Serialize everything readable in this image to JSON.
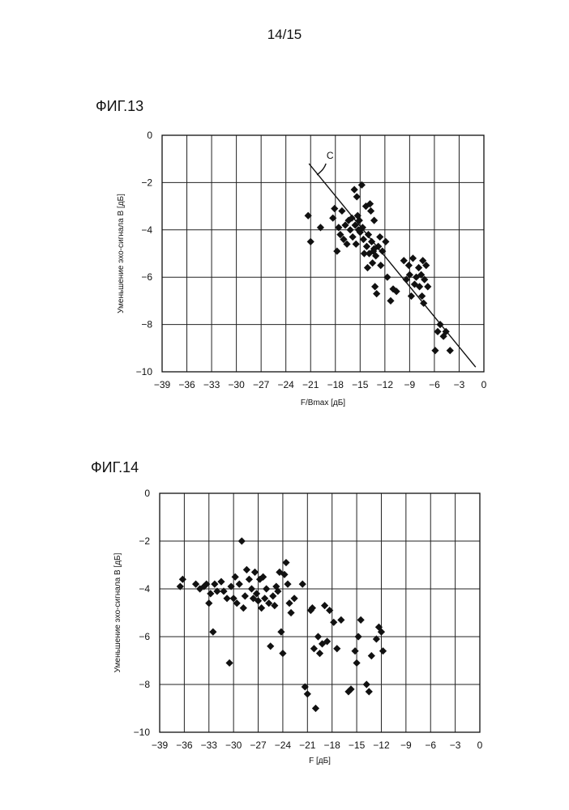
{
  "page_number": "14/15",
  "figures": [
    {
      "id": "fig13",
      "label": "ФИГ.13"
    },
    {
      "id": "fig14",
      "label": "ФИГ.14"
    }
  ],
  "chart_data": [
    {
      "id": "fig13",
      "type": "scatter",
      "title": "",
      "xlabel": "F/Bmax [дБ]",
      "ylabel": "Уменьшение эхо-сигнала B [дБ]",
      "xlim": [
        -39,
        0
      ],
      "ylim": [
        -10,
        0
      ],
      "xticks": [
        -39,
        -36,
        -33,
        -30,
        -27,
        -24,
        -21,
        -18,
        -15,
        -12,
        -9,
        -6,
        -3,
        0
      ],
      "yticks": [
        0,
        -2,
        -4,
        -6,
        -8,
        -10
      ],
      "xtick_labels": [
        "−39",
        "−36",
        "−33",
        "−30",
        "−27",
        "−24",
        "−21",
        "−18",
        "−15",
        "−12",
        "−9",
        "−6",
        "−3",
        "0"
      ],
      "ytick_labels": [
        "0",
        "−2",
        "−4",
        "−6",
        "−8",
        "−10"
      ],
      "grid": true,
      "marker": "diamond",
      "trendline": {
        "label": "C",
        "points": [
          [
            -21.2,
            -1.2
          ],
          [
            -1.0,
            -9.8
          ]
        ]
      },
      "points": [
        [
          -21.3,
          -3.4
        ],
        [
          -21.0,
          -4.5
        ],
        [
          -19.8,
          -3.9
        ],
        [
          -18.3,
          -3.5
        ],
        [
          -18.1,
          -3.1
        ],
        [
          -17.8,
          -4.9
        ],
        [
          -17.6,
          -3.9
        ],
        [
          -17.4,
          -4.2
        ],
        [
          -17.2,
          -3.2
        ],
        [
          -17.0,
          -4.4
        ],
        [
          -16.8,
          -3.8
        ],
        [
          -16.6,
          -4.6
        ],
        [
          -16.4,
          -3.6
        ],
        [
          -16.2,
          -4.0
        ],
        [
          -16.0,
          -3.5
        ],
        [
          -15.9,
          -4.3
        ],
        [
          -15.7,
          -2.3
        ],
        [
          -15.6,
          -3.8
        ],
        [
          -15.5,
          -4.6
        ],
        [
          -15.4,
          -2.6
        ],
        [
          -15.3,
          -3.4
        ],
        [
          -15.2,
          -4.0
        ],
        [
          -15.1,
          -3.6
        ],
        [
          -15.0,
          -4.1
        ],
        [
          -14.8,
          -2.1
        ],
        [
          -14.7,
          -3.9
        ],
        [
          -14.6,
          -4.4
        ],
        [
          -14.5,
          -5.0
        ],
        [
          -14.3,
          -3.0
        ],
        [
          -14.2,
          -4.7
        ],
        [
          -14.1,
          -5.6
        ],
        [
          -14.0,
          -4.2
        ],
        [
          -13.9,
          -5.0
        ],
        [
          -13.8,
          -2.9
        ],
        [
          -13.7,
          -3.2
        ],
        [
          -13.6,
          -4.5
        ],
        [
          -13.5,
          -5.4
        ],
        [
          -13.4,
          -4.9
        ],
        [
          -13.3,
          -3.6
        ],
        [
          -13.3,
          -4.8
        ],
        [
          -13.2,
          -6.4
        ],
        [
          -13.1,
          -5.1
        ],
        [
          -13.0,
          -6.7
        ],
        [
          -12.8,
          -4.7
        ],
        [
          -12.6,
          -4.3
        ],
        [
          -12.5,
          -5.5
        ],
        [
          -12.3,
          -4.9
        ],
        [
          -11.9,
          -4.5
        ],
        [
          -11.7,
          -6.0
        ],
        [
          -11.3,
          -7.0
        ],
        [
          -11.0,
          -6.5
        ],
        [
          -10.6,
          -6.6
        ],
        [
          -9.7,
          -5.3
        ],
        [
          -9.4,
          -6.1
        ],
        [
          -9.1,
          -5.5
        ],
        [
          -9.0,
          -5.9
        ],
        [
          -8.8,
          -6.8
        ],
        [
          -8.6,
          -5.2
        ],
        [
          -8.4,
          -6.3
        ],
        [
          -8.2,
          -6.0
        ],
        [
          -7.9,
          -5.6
        ],
        [
          -7.8,
          -6.4
        ],
        [
          -7.6,
          -5.9
        ],
        [
          -7.5,
          -6.8
        ],
        [
          -7.4,
          -5.3
        ],
        [
          -7.3,
          -7.1
        ],
        [
          -7.2,
          -6.1
        ],
        [
          -7.0,
          -5.5
        ],
        [
          -6.8,
          -6.4
        ],
        [
          -5.9,
          -9.1
        ],
        [
          -5.6,
          -8.3
        ],
        [
          -5.3,
          -8.0
        ],
        [
          -4.9,
          -8.5
        ],
        [
          -4.6,
          -8.3
        ],
        [
          -4.1,
          -9.1
        ]
      ]
    },
    {
      "id": "fig14",
      "type": "scatter",
      "title": "",
      "xlabel": "F [дБ]",
      "ylabel": "Уменьшение эхо-сигнала B [дБ]",
      "xlim": [
        -39,
        0
      ],
      "ylim": [
        -10,
        0
      ],
      "xticks": [
        -39,
        -36,
        -33,
        -30,
        -27,
        -24,
        -21,
        -18,
        -15,
        -12,
        -9,
        -6,
        -3,
        0
      ],
      "yticks": [
        0,
        -2,
        -4,
        -6,
        -8,
        -10
      ],
      "xtick_labels": [
        "−39",
        "−36",
        "−33",
        "−30",
        "−27",
        "−24",
        "−21",
        "−18",
        "−15",
        "−12",
        "−9",
        "−6",
        "−3",
        "0"
      ],
      "ytick_labels": [
        "0",
        "−2",
        "−4",
        "−6",
        "−8",
        "−10"
      ],
      "grid": true,
      "marker": "diamond",
      "points": [
        [
          -36.5,
          -3.9
        ],
        [
          -36.2,
          -3.6
        ],
        [
          -34.6,
          -3.8
        ],
        [
          -34.1,
          -4.0
        ],
        [
          -33.6,
          -3.9
        ],
        [
          -33.3,
          -3.8
        ],
        [
          -33.0,
          -4.6
        ],
        [
          -32.8,
          -4.2
        ],
        [
          -32.5,
          -5.8
        ],
        [
          -32.3,
          -3.8
        ],
        [
          -32.0,
          -4.1
        ],
        [
          -31.5,
          -3.7
        ],
        [
          -31.2,
          -4.1
        ],
        [
          -30.8,
          -4.4
        ],
        [
          -30.5,
          -7.1
        ],
        [
          -30.3,
          -3.9
        ],
        [
          -30.0,
          -4.4
        ],
        [
          -29.8,
          -3.5
        ],
        [
          -29.6,
          -4.6
        ],
        [
          -29.3,
          -3.8
        ],
        [
          -29.0,
          -2.0
        ],
        [
          -28.8,
          -4.8
        ],
        [
          -28.6,
          -4.3
        ],
        [
          -28.4,
          -3.2
        ],
        [
          -28.1,
          -3.6
        ],
        [
          -27.8,
          -4.0
        ],
        [
          -27.6,
          -4.4
        ],
        [
          -27.4,
          -3.3
        ],
        [
          -27.2,
          -4.2
        ],
        [
          -27.0,
          -4.5
        ],
        [
          -26.8,
          -3.6
        ],
        [
          -26.6,
          -4.8
        ],
        [
          -26.4,
          -3.5
        ],
        [
          -26.2,
          -4.4
        ],
        [
          -26.0,
          -4.0
        ],
        [
          -25.7,
          -4.6
        ],
        [
          -25.5,
          -6.4
        ],
        [
          -25.2,
          -4.3
        ],
        [
          -25.0,
          -4.7
        ],
        [
          -24.8,
          -3.9
        ],
        [
          -24.6,
          -4.1
        ],
        [
          -24.4,
          -3.3
        ],
        [
          -24.2,
          -5.8
        ],
        [
          -24.0,
          -6.7
        ],
        [
          -23.8,
          -3.4
        ],
        [
          -23.6,
          -2.9
        ],
        [
          -23.4,
          -3.8
        ],
        [
          -23.2,
          -4.6
        ],
        [
          -23.0,
          -5.0
        ],
        [
          -22.6,
          -4.4
        ],
        [
          -21.6,
          -3.8
        ],
        [
          -21.3,
          -8.1
        ],
        [
          -21.0,
          -8.4
        ],
        [
          -20.6,
          -4.9
        ],
        [
          -20.4,
          -4.8
        ],
        [
          -20.2,
          -6.5
        ],
        [
          -20.0,
          -9.0
        ],
        [
          -19.7,
          -6.0
        ],
        [
          -19.5,
          -6.7
        ],
        [
          -19.2,
          -6.3
        ],
        [
          -18.9,
          -4.7
        ],
        [
          -18.6,
          -6.2
        ],
        [
          -18.3,
          -4.9
        ],
        [
          -17.8,
          -5.4
        ],
        [
          -17.4,
          -6.5
        ],
        [
          -16.9,
          -5.3
        ],
        [
          -16.0,
          -8.3
        ],
        [
          -15.7,
          -8.2
        ],
        [
          -15.2,
          -6.6
        ],
        [
          -15.0,
          -7.1
        ],
        [
          -14.8,
          -6.0
        ],
        [
          -14.5,
          -5.3
        ],
        [
          -13.8,
          -8.0
        ],
        [
          -13.5,
          -8.3
        ],
        [
          -13.2,
          -6.8
        ],
        [
          -12.6,
          -6.1
        ],
        [
          -12.3,
          -5.6
        ],
        [
          -12.0,
          -5.8
        ],
        [
          -11.8,
          -6.6
        ]
      ]
    }
  ]
}
